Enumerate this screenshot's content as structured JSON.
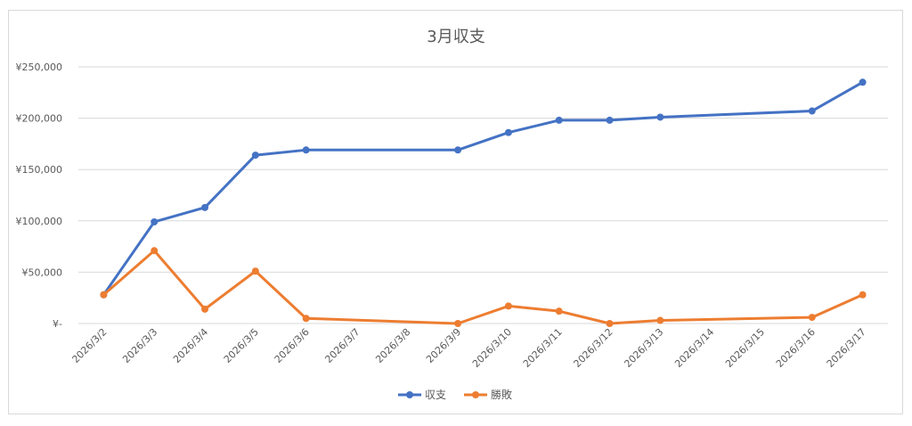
{
  "chart_data": {
    "type": "line",
    "title": "3月収支",
    "xlabel": "",
    "ylabel": "",
    "x": [
      "2026/3/2",
      "2026/3/3",
      "2026/3/4",
      "2026/3/5",
      "2026/3/6",
      "2026/3/7",
      "2026/3/8",
      "2026/3/9",
      "2026/3/10",
      "2026/3/11",
      "2026/3/12",
      "2026/3/13",
      "2026/3/14",
      "2026/3/15",
      "2026/3/16",
      "2026/3/17"
    ],
    "y_tick_labels": [
      "¥-",
      "¥50,000",
      "¥100,000",
      "¥150,000",
      "¥200,000",
      "¥250,000"
    ],
    "ylim": [
      0,
      250000
    ],
    "grid": true,
    "legend": "bottom",
    "series": [
      {
        "name": "収支",
        "color": "#4472c4",
        "values": [
          28000,
          99000,
          113000,
          164000,
          169000,
          null,
          null,
          169000,
          186000,
          198000,
          198000,
          201000,
          null,
          null,
          207000,
          235000
        ]
      },
      {
        "name": "勝敗",
        "color": "#ed7d31",
        "values": [
          28000,
          71000,
          14000,
          51000,
          5000,
          null,
          null,
          0,
          17000,
          12000,
          0,
          3000,
          null,
          null,
          6000,
          28000
        ]
      }
    ]
  }
}
